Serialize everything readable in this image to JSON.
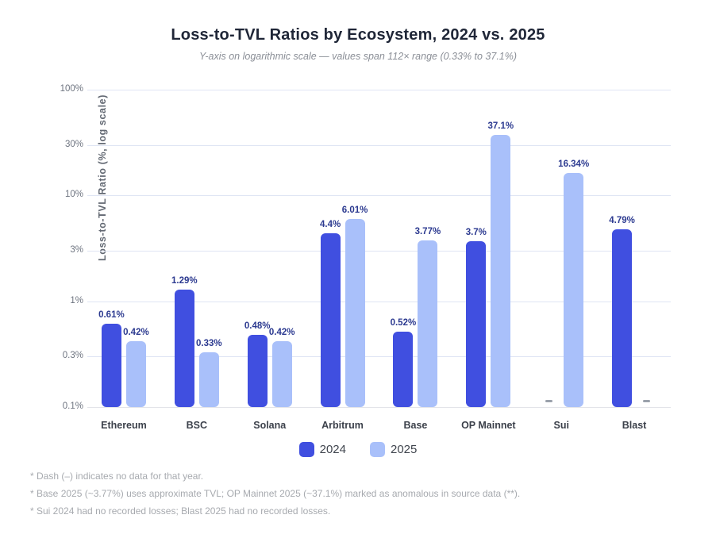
{
  "header": {
    "title": "Loss-to-TVL Ratios by Ecosystem, 2024 vs. 2025",
    "subtitle": "Y-axis on logarithmic scale — values span 112× range (0.33% to 37.1%)"
  },
  "chart_data": {
    "type": "bar",
    "title": "Loss-to-TVL Ratios by Ecosystem, 2024 vs. 2025",
    "subtitle": "Y-axis on logarithmic scale — values span 112× range (0.33% to 37.1%)",
    "xlabel": "",
    "ylabel": "Loss-to-TVL Ratio (%, log scale)",
    "yscale": "log",
    "ylim": [
      0.1,
      100
    ],
    "grid": true,
    "legend_position": "bottom",
    "yticks": [
      {
        "value": 100,
        "label": "100%"
      },
      {
        "value": 30,
        "label": "30%"
      },
      {
        "value": 10,
        "label": "10%"
      },
      {
        "value": 3,
        "label": "3%"
      },
      {
        "value": 1,
        "label": "1%"
      },
      {
        "value": 0.3,
        "label": "0.3%"
      },
      {
        "value": 0.1,
        "label": "0.1%"
      }
    ],
    "categories": [
      "Ethereum",
      "BSC",
      "Solana",
      "Arbitrum",
      "Base",
      "OP Mainnet",
      "Sui",
      "Blast"
    ],
    "series": [
      {
        "name": "2024",
        "color": "#404fe0",
        "values": [
          0.61,
          1.29,
          0.48,
          4.4,
          0.52,
          3.7,
          null,
          4.79
        ],
        "labels": [
          "0.61%",
          "1.29%",
          "0.48%",
          "4.4%",
          "0.52%",
          "3.7%",
          null,
          "4.79%"
        ]
      },
      {
        "name": "2025",
        "color": "#a9c0fa",
        "values": [
          0.42,
          0.33,
          0.42,
          6.01,
          3.77,
          37.1,
          16.34,
          null
        ],
        "labels": [
          "0.42%",
          "0.33%",
          "0.42%",
          "6.01%",
          "3.77%",
          "37.1%",
          "16.34%",
          null
        ]
      }
    ],
    "null_marker": "–"
  },
  "legend": {
    "items": [
      {
        "label": "2024",
        "color": "#404fe0"
      },
      {
        "label": "2025",
        "color": "#a9c0fa"
      }
    ]
  },
  "footnotes": [
    "* Dash (–) indicates no data for that year.",
    "* Base 2025 (~3.77%) uses approximate TVL; OP Mainnet 2025 (~37.1%) marked as anomalous in source data (**).",
    "* Sui 2024 had no recorded losses; Blast 2025 had no recorded losses."
  ],
  "colors": {
    "bar_2024": "#404fe0",
    "bar_2025": "#a9c0fa",
    "value_label": "#2c3a90",
    "gridline": "#dfe5f4",
    "baseline": "#e3e4e9",
    "tick_label": "#6e7480",
    "category_label": "#3c414b",
    "no_data_dash": "#9aa1ab",
    "background": "#ffffff"
  }
}
